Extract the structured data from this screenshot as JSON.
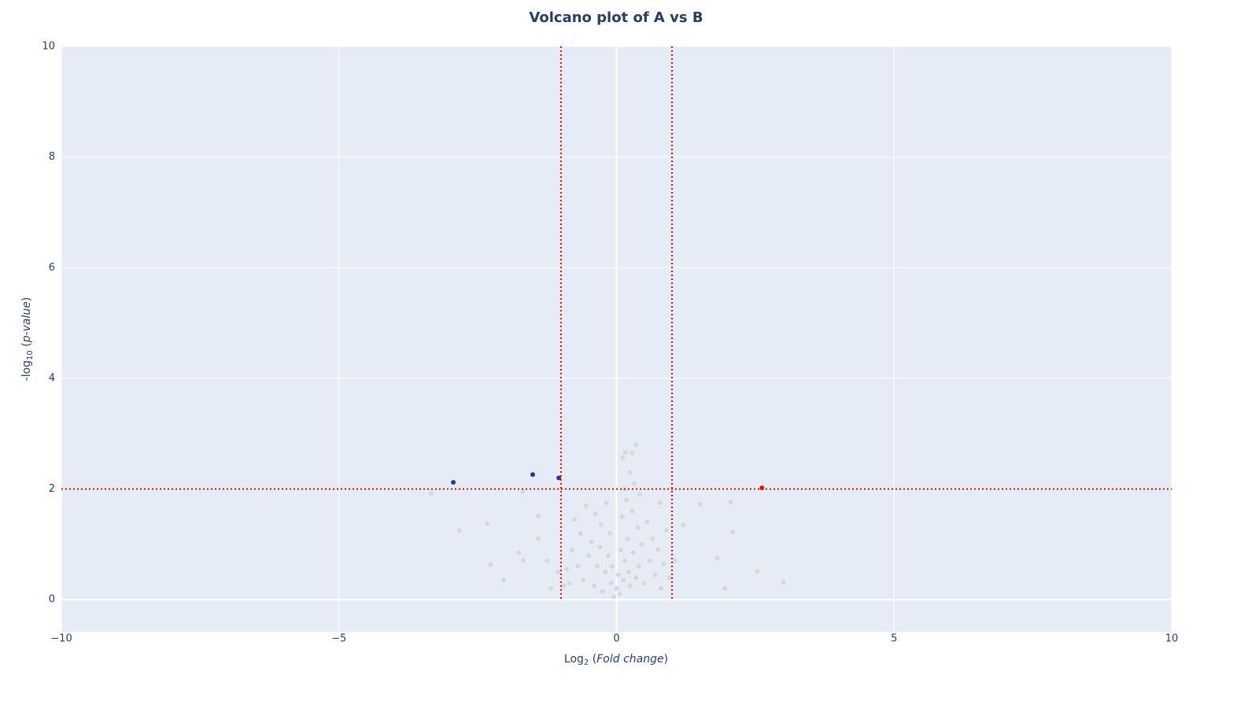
{
  "chart_data": {
    "type": "scatter",
    "title": "Volcano plot of A vs B",
    "xlabel_parts": [
      "Log",
      "2",
      " (",
      "Fold change",
      ")"
    ],
    "ylabel_parts": [
      "-log",
      "10",
      " (",
      "p-value",
      ")"
    ],
    "xlim": [
      -10,
      10
    ],
    "ylim": [
      -0.58,
      10
    ],
    "xticks": [
      {
        "value": -10,
        "label": "−10"
      },
      {
        "value": -5,
        "label": "−5"
      },
      0,
      5,
      10
    ],
    "yticks": [
      0,
      2,
      4,
      6,
      8,
      10
    ],
    "grid": true,
    "threshold_color": "#ff0000",
    "x_thresholds": [
      -1,
      1
    ],
    "y_threshold": 2,
    "series": [
      {
        "color": "#d8d8d8",
        "x": [
          -3.34,
          -2.83,
          -2.33,
          -2.27,
          -2.03,
          -1.76,
          -1.68,
          -1.69,
          -1.41,
          -1.41,
          -1.25,
          -1.18,
          1.51,
          1.2,
          2.06,
          2.09,
          1.81,
          1.95,
          2.54,
          3.01,
          0.35,
          0.16,
          0.28,
          0.11,
          -0.9,
          -0.85,
          -0.8,
          -0.75,
          -0.7,
          -0.65,
          -0.6,
          -0.55,
          -0.5,
          -0.45,
          -0.4,
          -0.38,
          -0.35,
          -0.3,
          -0.28,
          -0.25,
          -0.2,
          -0.18,
          -0.15,
          -0.12,
          -0.1,
          -0.08,
          -0.05,
          0,
          0.03,
          0.05,
          0.08,
          0.1,
          0.12,
          0.14,
          0.15,
          0.18,
          0.2,
          0.22,
          0.24,
          0.25,
          0.28,
          0.3,
          0.32,
          0.35,
          0.38,
          0.4,
          0.42,
          0.45,
          0.5,
          0.55,
          0.6,
          0.65,
          0.7,
          0.75,
          0.8,
          0.85,
          0.9,
          0.95,
          -1.05,
          -0.95,
          1.05,
          0.78
        ],
        "y": [
          1.92,
          1.25,
          1.38,
          0.63,
          0.36,
          0.85,
          0.71,
          1.95,
          1.51,
          1.1,
          0.7,
          0.2,
          1.72,
          1.35,
          1.76,
          1.22,
          0.75,
          0.2,
          0.51,
          0.31,
          2.8,
          2.66,
          2.65,
          2.57,
          0.55,
          0.3,
          0.9,
          1.45,
          0.6,
          1.2,
          0.35,
          1.7,
          0.8,
          1.05,
          0.25,
          1.55,
          0.6,
          0.95,
          1.35,
          0.15,
          0.5,
          1.75,
          0.8,
          1.2,
          0.3,
          0.6,
          0.05,
          0.2,
          0.45,
          0.1,
          0.9,
          1.5,
          0.35,
          2.0,
          0.7,
          1.8,
          1.1,
          0.5,
          2.3,
          0.25,
          1.6,
          0.85,
          2.1,
          0.4,
          1.3,
          0.6,
          1.9,
          1.0,
          0.3,
          1.4,
          0.7,
          1.1,
          0.45,
          0.9,
          0.2,
          0.65,
          1.25,
          0.4,
          0.5,
          0.25,
          0.7,
          1.75
        ]
      },
      {
        "color": "#253a8c",
        "x": [
          -2.94,
          -1.51,
          -1.04
        ],
        "y": [
          2.12,
          2.26,
          2.2
        ]
      },
      {
        "color": "#e8110f",
        "x": [
          2.62
        ],
        "y": [
          2.02
        ]
      }
    ]
  }
}
